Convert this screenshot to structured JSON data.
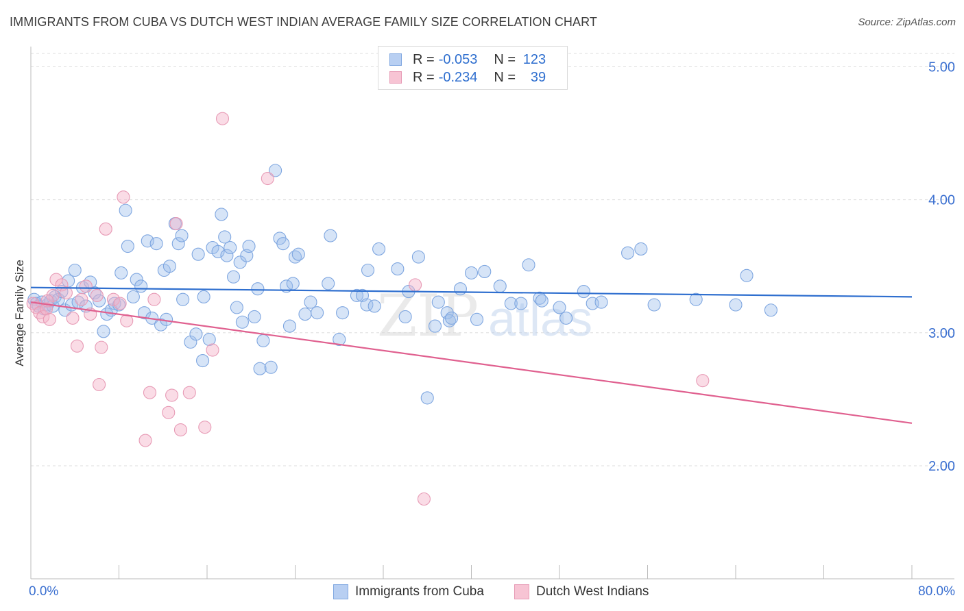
{
  "title": "IMMIGRANTS FROM CUBA VS DUTCH WEST INDIAN AVERAGE FAMILY SIZE CORRELATION CHART",
  "source": "Source: ZipAtlas.com",
  "watermark": {
    "zip": "ZIP",
    "atlas": "atlas"
  },
  "stats": [
    {
      "r_label": "R =",
      "r_value": "-0.053",
      "n_label": "N =",
      "n_value": "123",
      "color": "#7ea6e0"
    },
    {
      "r_label": "R =",
      "r_value": "-0.234",
      "n_label": "N =",
      "n_value": "39",
      "color": "#e79ab5"
    }
  ],
  "legend": [
    {
      "label": "Immigrants from Cuba",
      "color": "#7ea6e0"
    },
    {
      "label": "Dutch West Indians",
      "color": "#e79ab5"
    }
  ],
  "chart_data": {
    "type": "scatter",
    "title": "IMMIGRANTS FROM CUBA VS DUTCH WEST INDIAN AVERAGE FAMILY SIZE CORRELATION CHART",
    "xlabel": "",
    "ylabel": "Average Family Size",
    "xlim": [
      0,
      80
    ],
    "ylim": [
      1.15,
      5.1
    ],
    "x_tick_labels": [
      "0.0%",
      "80.0%"
    ],
    "y_ticks": [
      2.0,
      3.0,
      4.0,
      5.0
    ],
    "y_tick_labels": [
      "2.00",
      "3.00",
      "4.00",
      "5.00"
    ],
    "grid": true,
    "legend_position": "bottom-center",
    "series": [
      {
        "name": "Immigrants from Cuba",
        "color": "#7ea6e0",
        "trend": {
          "x": [
            0,
            80
          ],
          "y": [
            3.34,
            3.27
          ],
          "color": "#2f6fcf"
        },
        "points": [
          [
            0.3,
            3.25
          ],
          [
            0.5,
            3.22
          ],
          [
            0.7,
            3.2
          ],
          [
            1.0,
            3.23
          ],
          [
            1.2,
            3.18
          ],
          [
            1.5,
            3.21
          ],
          [
            1.8,
            3.24
          ],
          [
            2.0,
            3.2
          ],
          [
            2.2,
            3.27
          ],
          [
            2.5,
            3.25
          ],
          [
            2.8,
            3.31
          ],
          [
            3.1,
            3.17
          ],
          [
            3.4,
            3.39
          ],
          [
            3.7,
            3.21
          ],
          [
            4.0,
            3.47
          ],
          [
            4.3,
            3.23
          ],
          [
            4.7,
            3.34
          ],
          [
            5.0,
            3.2
          ],
          [
            5.4,
            3.38
          ],
          [
            5.8,
            3.3
          ],
          [
            6.2,
            3.24
          ],
          [
            6.6,
            3.01
          ],
          [
            6.9,
            3.14
          ],
          [
            7.3,
            3.17
          ],
          [
            7.6,
            3.22
          ],
          [
            8.0,
            3.21
          ],
          [
            8.2,
            3.45
          ],
          [
            8.6,
            3.92
          ],
          [
            8.8,
            3.65
          ],
          [
            9.3,
            3.27
          ],
          [
            9.6,
            3.4
          ],
          [
            10.0,
            3.35
          ],
          [
            10.3,
            3.15
          ],
          [
            10.6,
            3.69
          ],
          [
            11.0,
            3.11
          ],
          [
            11.4,
            3.67
          ],
          [
            11.8,
            3.06
          ],
          [
            12.1,
            3.47
          ],
          [
            12.3,
            3.1
          ],
          [
            12.6,
            3.5
          ],
          [
            13.1,
            3.82
          ],
          [
            13.4,
            3.67
          ],
          [
            13.7,
            3.73
          ],
          [
            13.8,
            3.25
          ],
          [
            14.5,
            2.93
          ],
          [
            15.0,
            2.99
          ],
          [
            15.2,
            3.59
          ],
          [
            15.6,
            2.79
          ],
          [
            15.7,
            3.27
          ],
          [
            16.2,
            2.95
          ],
          [
            16.5,
            3.64
          ],
          [
            17.0,
            3.61
          ],
          [
            17.3,
            3.89
          ],
          [
            17.6,
            3.72
          ],
          [
            17.8,
            3.58
          ],
          [
            18.1,
            3.64
          ],
          [
            18.4,
            3.42
          ],
          [
            18.7,
            3.19
          ],
          [
            19.0,
            3.53
          ],
          [
            19.2,
            3.08
          ],
          [
            19.6,
            3.58
          ],
          [
            19.8,
            3.65
          ],
          [
            20.3,
            3.12
          ],
          [
            20.6,
            3.33
          ],
          [
            20.8,
            2.73
          ],
          [
            21.1,
            2.94
          ],
          [
            21.8,
            2.74
          ],
          [
            22.2,
            4.22
          ],
          [
            22.6,
            3.71
          ],
          [
            22.9,
            3.67
          ],
          [
            23.2,
            3.35
          ],
          [
            23.5,
            3.05
          ],
          [
            23.8,
            3.37
          ],
          [
            24.0,
            3.57
          ],
          [
            24.3,
            3.59
          ],
          [
            24.9,
            3.14
          ],
          [
            25.4,
            3.23
          ],
          [
            26.0,
            3.15
          ],
          [
            27.0,
            3.37
          ],
          [
            27.2,
            3.73
          ],
          [
            28.0,
            2.95
          ],
          [
            28.3,
            3.15
          ],
          [
            29.6,
            3.28
          ],
          [
            30.1,
            3.28
          ],
          [
            30.5,
            3.21
          ],
          [
            30.6,
            3.47
          ],
          [
            31.2,
            3.2
          ],
          [
            31.6,
            3.63
          ],
          [
            33.3,
            3.48
          ],
          [
            34.0,
            3.12
          ],
          [
            34.3,
            3.31
          ],
          [
            35.2,
            3.57
          ],
          [
            36.0,
            2.51
          ],
          [
            36.7,
            3.05
          ],
          [
            37.0,
            3.23
          ],
          [
            37.8,
            3.15
          ],
          [
            38.0,
            3.09
          ],
          [
            38.2,
            3.11
          ],
          [
            39.0,
            3.33
          ],
          [
            40.0,
            3.45
          ],
          [
            40.5,
            3.1
          ],
          [
            41.2,
            3.46
          ],
          [
            42.6,
            3.35
          ],
          [
            43.6,
            3.22
          ],
          [
            44.5,
            3.22
          ],
          [
            45.2,
            3.51
          ],
          [
            46.2,
            3.26
          ],
          [
            46.4,
            3.24
          ],
          [
            48.0,
            3.19
          ],
          [
            48.6,
            3.11
          ],
          [
            50.2,
            3.31
          ],
          [
            51.0,
            3.22
          ],
          [
            51.8,
            3.23
          ],
          [
            54.2,
            3.6
          ],
          [
            55.4,
            3.63
          ],
          [
            56.6,
            3.21
          ],
          [
            60.4,
            3.25
          ],
          [
            64.0,
            3.21
          ],
          [
            65.0,
            3.43
          ],
          [
            67.2,
            3.17
          ]
        ]
      },
      {
        "name": "Dutch West Indians",
        "color": "#e79ab5",
        "trend": {
          "x": [
            0,
            80
          ],
          "y": [
            3.23,
            2.32
          ],
          "color": "#e0608f"
        },
        "points": [
          [
            0.2,
            3.22
          ],
          [
            0.5,
            3.19
          ],
          [
            0.8,
            3.15
          ],
          [
            1.1,
            3.12
          ],
          [
            1.4,
            3.18
          ],
          [
            1.7,
            3.1
          ],
          [
            2.0,
            3.28
          ],
          [
            2.3,
            3.4
          ],
          [
            2.8,
            3.36
          ],
          [
            3.2,
            3.3
          ],
          [
            3.8,
            3.11
          ],
          [
            4.2,
            2.9
          ],
          [
            4.6,
            3.25
          ],
          [
            5.0,
            3.35
          ],
          [
            5.4,
            3.14
          ],
          [
            6.0,
            3.28
          ],
          [
            6.2,
            2.61
          ],
          [
            6.4,
            2.89
          ],
          [
            6.8,
            3.78
          ],
          [
            7.5,
            3.25
          ],
          [
            8.1,
            3.22
          ],
          [
            8.4,
            4.02
          ],
          [
            8.7,
            3.09
          ],
          [
            10.4,
            2.19
          ],
          [
            10.8,
            2.55
          ],
          [
            11.2,
            3.25
          ],
          [
            12.5,
            2.4
          ],
          [
            12.8,
            2.53
          ],
          [
            13.2,
            3.82
          ],
          [
            13.6,
            2.27
          ],
          [
            14.4,
            2.55
          ],
          [
            15.8,
            2.29
          ],
          [
            16.5,
            2.87
          ],
          [
            17.4,
            4.61
          ],
          [
            21.5,
            4.16
          ],
          [
            34.9,
            3.36
          ],
          [
            35.7,
            1.75
          ],
          [
            61.0,
            2.64
          ],
          [
            1.5,
            3.24
          ]
        ]
      }
    ]
  }
}
